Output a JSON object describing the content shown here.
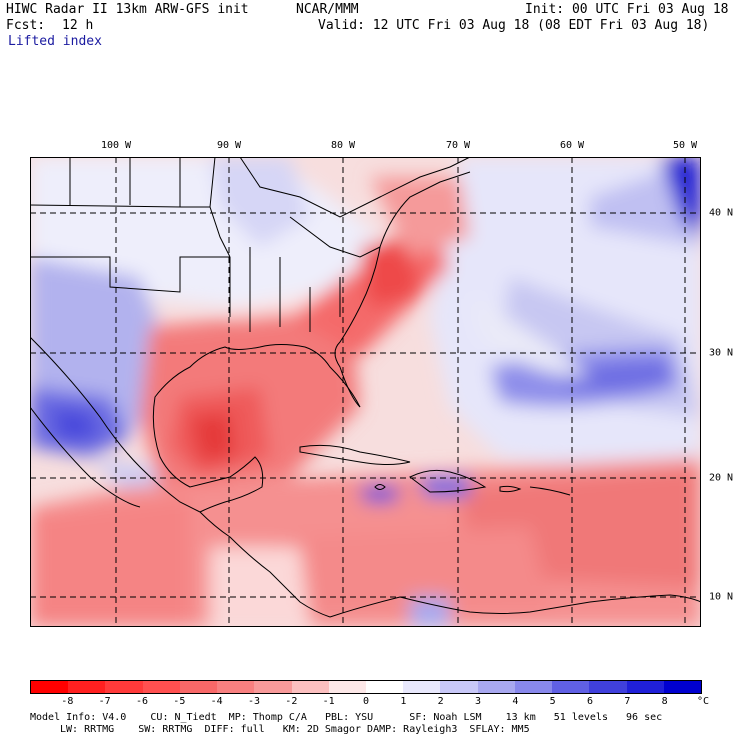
{
  "header": {
    "model_title": "HIWC Radar II 13km ARW-GFS init",
    "org": "NCAR/MMM",
    "init": "Init: 00 UTC Fri 03 Aug 18",
    "fcst_label": "Fcst:",
    "fcst_value": "12 h",
    "valid": "Valid: 12 UTC Fri 03 Aug 18 (08 EDT Fri 03 Aug 18)",
    "field": "Lifted index"
  },
  "map": {
    "lon_labels": [
      "100 W",
      "90 W",
      "80 W",
      "70 W",
      "60 W",
      "50 W"
    ],
    "lat_labels": [
      "40 N",
      "30 N",
      "20 N",
      "10 N"
    ]
  },
  "colorbar": {
    "ticks": [
      "-8",
      "-7",
      "-6",
      "-5",
      "-4",
      "-3",
      "-2",
      "-1",
      "0",
      "1",
      "2",
      "3",
      "4",
      "5",
      "6",
      "7",
      "8"
    ],
    "unit": "°C",
    "colors": [
      "#ff0000",
      "#ff2020",
      "#ff3a3a",
      "#ff5050",
      "#f86868",
      "#f88080",
      "#f89a9a",
      "#fcc0c0",
      "#fde8e8",
      "#ffffff",
      "#e8e8fc",
      "#c8c8f8",
      "#a8a8f0",
      "#8888ec",
      "#6060e4",
      "#4040dc",
      "#2020d8",
      "#0000d0"
    ]
  },
  "footer": {
    "line1": "Model Info: V4.0    CU: N_Tiedt  MP: Thomp C/A   PBL: YSU      SF: Noah LSM    13 km   51 levels   96 sec",
    "line2": "LW: RRTMG    SW: RRTMG  DIFF: full   KM: 2D Smagor DAMP: Rayleigh3  SFLAY: MM5"
  }
}
